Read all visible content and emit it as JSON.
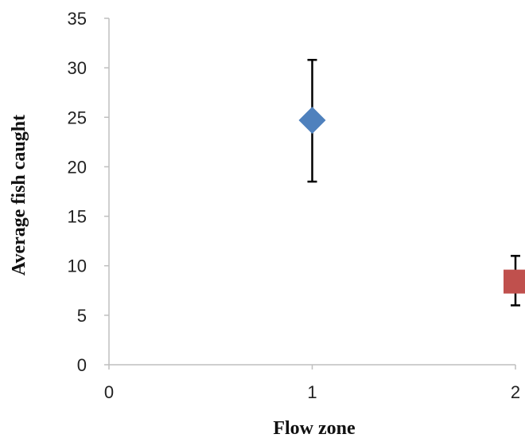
{
  "chart_data": {
    "type": "scatter",
    "title": "",
    "xlabel": "Flow zone",
    "ylabel": "Average fish caught",
    "xlim": [
      0,
      2
    ],
    "ylim": [
      0,
      35
    ],
    "x_ticks": [
      0,
      1,
      2
    ],
    "y_ticks": [
      0,
      5,
      10,
      15,
      20,
      25,
      30,
      35
    ],
    "grid": false,
    "legend": "none",
    "series": [
      {
        "x": 1,
        "y": 24.7,
        "error_low": 18.5,
        "error_high": 30.8,
        "marker": "diamond",
        "color": "#4f81bd"
      },
      {
        "x": 2,
        "y": 8.4,
        "error_low": 6.0,
        "error_high": 11.0,
        "marker": "square",
        "color": "#c0504d"
      }
    ]
  }
}
